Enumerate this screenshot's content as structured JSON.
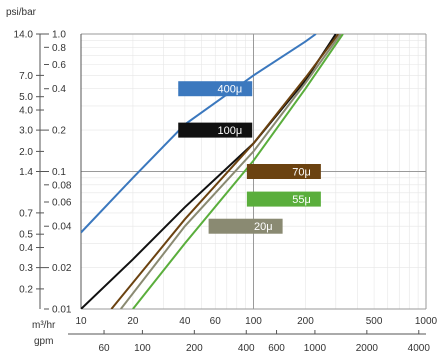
{
  "chart_data": {
    "type": "line",
    "x_scale": "log",
    "y_scale": "log",
    "grid": true,
    "units": {
      "y_top": "psi/bar",
      "x_primary": "m³/hr",
      "x_secondary": "gpm"
    },
    "axes": {
      "x_m3hr_range": [
        10,
        1000
      ],
      "y_bar_range": [
        0.01,
        1.0
      ]
    },
    "ticks": {
      "psi": [
        {
          "label": "14.0",
          "bar": 1.0
        },
        {
          "label": "7.0",
          "bar": 0.5
        },
        {
          "label": "5.0",
          "bar": 0.35
        },
        {
          "label": "4.0",
          "bar": 0.28
        },
        {
          "label": "3.0",
          "bar": 0.2
        },
        {
          "label": "2.0",
          "bar": 0.14
        },
        {
          "label": "1.4",
          "bar": 0.1
        },
        {
          "label": "0.7",
          "bar": 0.05
        },
        {
          "label": "0.5",
          "bar": 0.035
        },
        {
          "label": "0.4",
          "bar": 0.028
        },
        {
          "label": "0.3",
          "bar": 0.02
        },
        {
          "label": "0.2",
          "bar": 0.014
        }
      ],
      "bar": [
        {
          "label": "1.0",
          "bar": 1.0
        },
        {
          "label": "0.8",
          "bar": 0.8
        },
        {
          "label": "0.6",
          "bar": 0.6
        },
        {
          "label": "0.4",
          "bar": 0.4
        },
        {
          "label": "0.2",
          "bar": 0.2
        },
        {
          "label": "0.1",
          "bar": 0.1
        },
        {
          "label": "0.08",
          "bar": 0.08
        },
        {
          "label": "0.06",
          "bar": 0.06
        },
        {
          "label": "0.04",
          "bar": 0.04
        },
        {
          "label": "0.02",
          "bar": 0.02
        },
        {
          "label": "0.01",
          "bar": 0.01
        }
      ],
      "m3hr": [
        {
          "label": "10",
          "m3hr": 10
        },
        {
          "label": "20",
          "m3hr": 20
        },
        {
          "label": "40",
          "m3hr": 40
        },
        {
          "label": "60",
          "m3hr": 60
        },
        {
          "label": "100",
          "m3hr": 100
        },
        {
          "label": "200",
          "m3hr": 200
        },
        {
          "label": "500",
          "m3hr": 500
        },
        {
          "label": "1000",
          "m3hr": 1000
        }
      ],
      "gpm": [
        {
          "label": "60",
          "m3hr": 13.6
        },
        {
          "label": "100",
          "m3hr": 22.7
        },
        {
          "label": "200",
          "m3hr": 45.4
        },
        {
          "label": "400",
          "m3hr": 90.8
        },
        {
          "label": "600",
          "m3hr": 136
        },
        {
          "label": "1000",
          "m3hr": 227
        },
        {
          "label": "2000",
          "m3hr": 454
        },
        {
          "label": "4000",
          "m3hr": 908
        }
      ]
    },
    "series": [
      {
        "name": "400μ",
        "color": "#3b78be",
        "points": [
          [
            10,
            0.036
          ],
          [
            20,
            0.09
          ],
          [
            40,
            0.22
          ],
          [
            100,
            0.5
          ],
          [
            200,
            0.88
          ],
          [
            230,
            1.0
          ]
        ]
      },
      {
        "name": "100μ",
        "color": "#111111",
        "points": [
          [
            10,
            0.01
          ],
          [
            20,
            0.023
          ],
          [
            40,
            0.055
          ],
          [
            100,
            0.16
          ],
          [
            200,
            0.46
          ],
          [
            300,
            1.0
          ]
        ]
      },
      {
        "name": "70μ",
        "color": "#6b4210",
        "points": [
          [
            15,
            0.01
          ],
          [
            40,
            0.045
          ],
          [
            100,
            0.16
          ],
          [
            200,
            0.48
          ],
          [
            310,
            1.0
          ]
        ]
      },
      {
        "name": "55μ",
        "color": "#5aae3c",
        "points": [
          [
            20,
            0.01
          ],
          [
            40,
            0.03
          ],
          [
            100,
            0.12
          ],
          [
            200,
            0.4
          ],
          [
            330,
            1.0
          ]
        ]
      },
      {
        "name": "20μ",
        "color": "#8a8a72",
        "points": [
          [
            17,
            0.01
          ],
          [
            40,
            0.04
          ],
          [
            100,
            0.14
          ],
          [
            200,
            0.44
          ],
          [
            320,
            1.0
          ]
        ]
      }
    ],
    "labels": [
      {
        "text": "400μ",
        "color": "#3b78be",
        "at": [
          60,
          0.4
        ]
      },
      {
        "text": "100μ",
        "color": "#111111",
        "at": [
          60,
          0.2
        ]
      },
      {
        "text": "70μ",
        "color": "#6b4210",
        "at": [
          150,
          0.1
        ]
      },
      {
        "text": "55μ",
        "color": "#5aae3c",
        "at": [
          150,
          0.063
        ]
      },
      {
        "text": "20μ",
        "color": "#8a8a72",
        "at": [
          90,
          0.04
        ]
      }
    ]
  }
}
